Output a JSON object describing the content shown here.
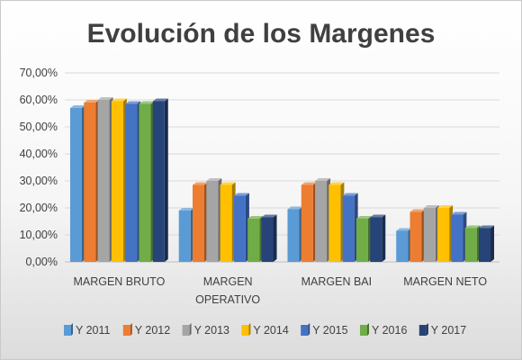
{
  "chart_data": {
    "type": "bar",
    "title": "Evolución de los Margenes",
    "categories": [
      [
        "MARGEN BRUTO"
      ],
      [
        "MARGEN",
        "OPERATIVO"
      ],
      [
        "MARGEN BAI"
      ],
      [
        "MARGEN NETO"
      ]
    ],
    "series": [
      {
        "name": "Y 2011",
        "color": "#5b9bd5",
        "values": [
          57,
          19,
          19.5,
          11.5
        ]
      },
      {
        "name": "Y 2012",
        "color": "#ed7d31",
        "values": [
          59,
          28.5,
          28.5,
          18.5
        ]
      },
      {
        "name": "Y 2013",
        "color": "#a5a5a5",
        "values": [
          60,
          30,
          30,
          20
        ]
      },
      {
        "name": "Y 2014",
        "color": "#ffc000",
        "values": [
          59.5,
          28.5,
          28.5,
          20
        ]
      },
      {
        "name": "Y 2015",
        "color": "#4472c4",
        "values": [
          58.5,
          24.5,
          24.5,
          17.5
        ]
      },
      {
        "name": "Y 2016",
        "color": "#70ad47",
        "values": [
          58.5,
          16,
          16,
          12.5
        ]
      },
      {
        "name": "Y 2017",
        "color": "#264478",
        "values": [
          59.5,
          16.5,
          16.5,
          12.5
        ]
      }
    ],
    "ylim": [
      0,
      70
    ],
    "yticks": [
      "0,00%",
      "10,00%",
      "20,00%",
      "30,00%",
      "40,00%",
      "50,00%",
      "60,00%",
      "70,00%"
    ],
    "grid": true,
    "legend_position": "bottom"
  }
}
